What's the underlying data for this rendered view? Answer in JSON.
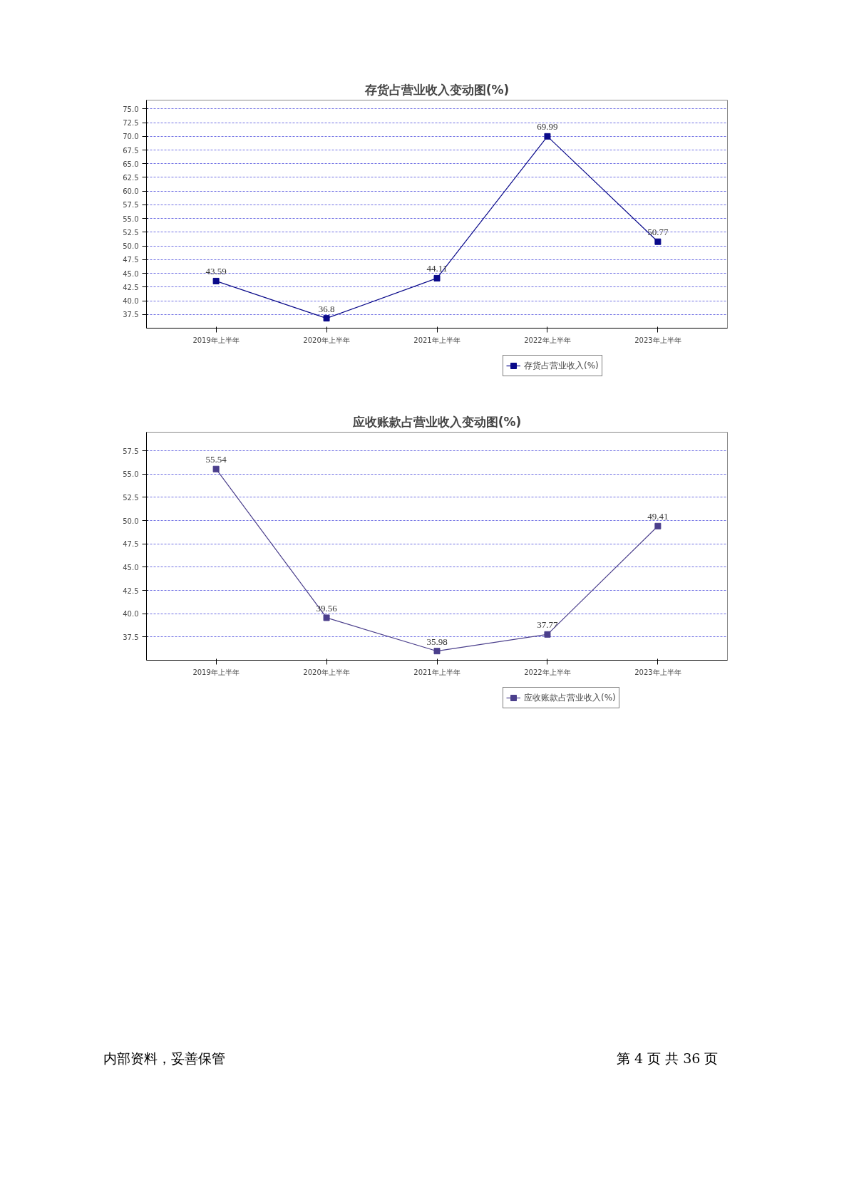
{
  "chart_data": [
    {
      "type": "line",
      "title": "存货占营业收入变动图(%)",
      "categories": [
        "2019年上半年",
        "2020年上半年",
        "2021年上半年",
        "2022年上半年",
        "2023年上半年"
      ],
      "series": [
        {
          "name": "存货占营业收入(%)",
          "color": "#0a0a8a",
          "values": [
            43.59,
            36.8,
            44.11,
            69.99,
            50.77
          ]
        }
      ],
      "ylim": [
        35,
        76.6
      ],
      "yticks": [
        {
          "value": 37.5,
          "label": "37.5"
        },
        {
          "value": 40,
          "label": "40.0"
        },
        {
          "value": 42.5,
          "label": "42.5"
        },
        {
          "value": 45,
          "label": "45.0"
        },
        {
          "value": 47.5,
          "label": "47.5"
        },
        {
          "value": 50,
          "label": "50.0"
        },
        {
          "value": 52.5,
          "label": "52.5"
        },
        {
          "value": 55,
          "label": "55.0"
        },
        {
          "value": 57.5,
          "label": "57.5"
        },
        {
          "value": 60,
          "label": "60.0"
        },
        {
          "value": 62.5,
          "label": "62.5"
        },
        {
          "value": 65,
          "label": "65.0"
        },
        {
          "value": 67.5,
          "label": "67.5"
        },
        {
          "value": 70,
          "label": "70.0"
        },
        {
          "value": 72.5,
          "label": "72.5"
        },
        {
          "value": 75,
          "label": "75.0"
        }
      ],
      "grid": "y",
      "legend": "bottom",
      "marker": "square",
      "line_style": "solid",
      "data_labels": true
    },
    {
      "type": "line",
      "title": "应收账款占营业收入变动图(%)",
      "categories": [
        "2019年上半年",
        "2020年上半年",
        "2021年上半年",
        "2022年上半年",
        "2023年上半年"
      ],
      "series": [
        {
          "name": "应收账款占营业收入(%)",
          "color": "#4b3f8c",
          "values": [
            55.54,
            39.56,
            35.98,
            37.77,
            49.41
          ]
        }
      ],
      "ylim": [
        35,
        59.5
      ],
      "yticks": [
        {
          "value": 37.5,
          "label": "37.5"
        },
        {
          "value": 40,
          "label": "40.0"
        },
        {
          "value": 42.5,
          "label": "42.5"
        },
        {
          "value": 45,
          "label": "45.0"
        },
        {
          "value": 47.5,
          "label": "47.5"
        },
        {
          "value": 50,
          "label": "50.0"
        },
        {
          "value": 52.5,
          "label": "52.5"
        },
        {
          "value": 55,
          "label": "55.0"
        },
        {
          "value": 57.5,
          "label": "57.5"
        }
      ],
      "grid": "y",
      "legend": "bottom",
      "marker": "square",
      "line_style": "solid",
      "data_labels": true,
      "annotations": [
        "内部资料，妥善保管",
        "第 4 页   共 36 页"
      ]
    }
  ]
}
